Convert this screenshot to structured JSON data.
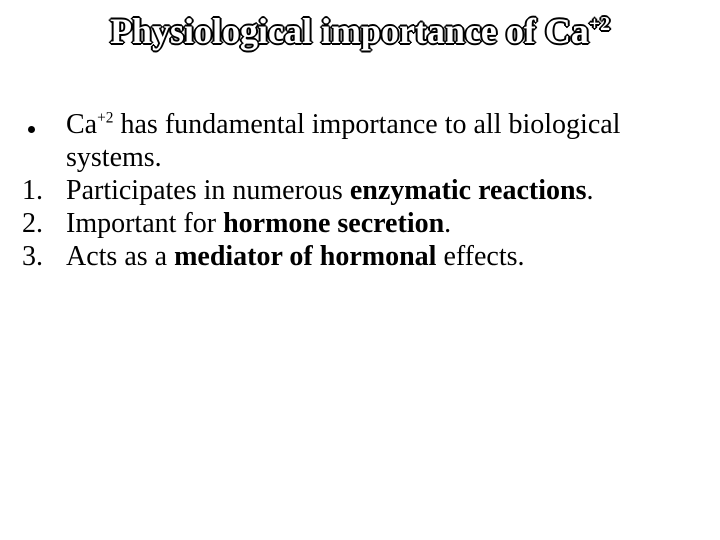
{
  "colors": {
    "background": "#ffffff",
    "text": "#000000",
    "title_fill": "#ffffff",
    "title_outline": "#000000"
  },
  "typography": {
    "title_fontsize_pt": 36,
    "body_fontsize_pt": 28,
    "font_family": "Times New Roman"
  },
  "title": {
    "prefix": "Physiological importance of Ca",
    "superscript": "+2"
  },
  "bullet": {
    "pre_sup": "Ca",
    "sup": "+2",
    "post_sup": " has fundamental importance to all biological systems."
  },
  "numbered": [
    {
      "num": "1.",
      "before_bold": "Participates in numerous ",
      "bold": "enzymatic reactions",
      "after_bold": "."
    },
    {
      "num": "2.",
      "before_bold": "Important for  ",
      "bold": "hormone secretion",
      "after_bold": "."
    },
    {
      "num": "3.",
      "before_bold": "Acts as a ",
      "bold": "mediator of hormonal",
      "after_bold": " effects."
    }
  ]
}
